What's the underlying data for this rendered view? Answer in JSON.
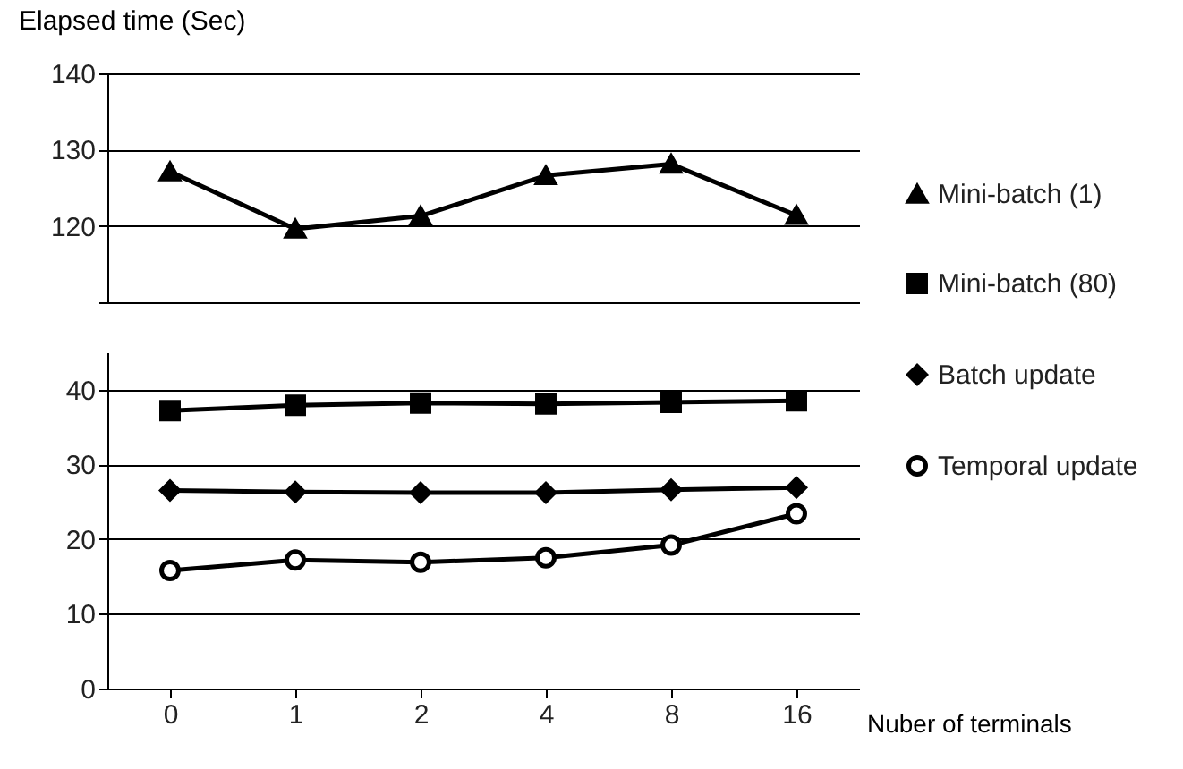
{
  "chart_data": [
    {
      "type": "line",
      "ylabel": "Elapsed time (Sec)",
      "categories": [
        "0",
        "1",
        "2",
        "4",
        "8",
        "16"
      ],
      "ylim": [
        110,
        140
      ],
      "yticks": [
        {
          "value": 110,
          "label": null
        },
        120,
        130,
        140
      ],
      "grid": "y",
      "tick_labels": "y",
      "legend": "right",
      "line_style": "solid",
      "series": [
        {
          "name": "Mini-batch (1)",
          "color": "#000000",
          "marker": "triangle",
          "values": [
            127.1,
            119.6,
            121.3,
            126.6,
            128.1,
            121.4
          ]
        }
      ]
    },
    {
      "type": "line",
      "xlabel": "Nuber of terminals",
      "categories": [
        "0",
        "1",
        "2",
        "4",
        "8",
        "16"
      ],
      "ylim": [
        0,
        45
      ],
      "yticks": [
        0,
        10,
        20,
        30,
        40
      ],
      "grid": "y",
      "legend": "right",
      "line_style": "solid",
      "series": [
        {
          "name": "Mini-batch (80)",
          "color": "#000000",
          "marker": "square",
          "values": [
            37.2,
            37.9,
            38.2,
            38.1,
            38.3,
            38.5
          ]
        },
        {
          "name": "Batch update",
          "color": "#000000",
          "marker": "diamond",
          "values": [
            26.5,
            26.3,
            26.2,
            26.2,
            26.6,
            26.9
          ]
        },
        {
          "name": "Temporal update",
          "color": "#000000",
          "marker": "circle",
          "values": [
            15.8,
            17.2,
            16.9,
            17.5,
            19.2,
            23.4
          ]
        }
      ]
    }
  ]
}
